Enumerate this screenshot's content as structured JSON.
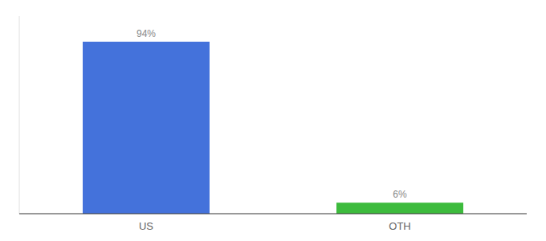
{
  "chart_data": {
    "type": "bar",
    "categories": [
      "US",
      "OTH"
    ],
    "values": [
      94,
      6
    ],
    "value_labels": [
      "94%",
      "6%"
    ],
    "colors": [
      "#4472db",
      "#3dbb3d"
    ],
    "ylim": [
      0,
      108
    ],
    "grid": false,
    "data_labels": true,
    "tick_labels": "x"
  }
}
